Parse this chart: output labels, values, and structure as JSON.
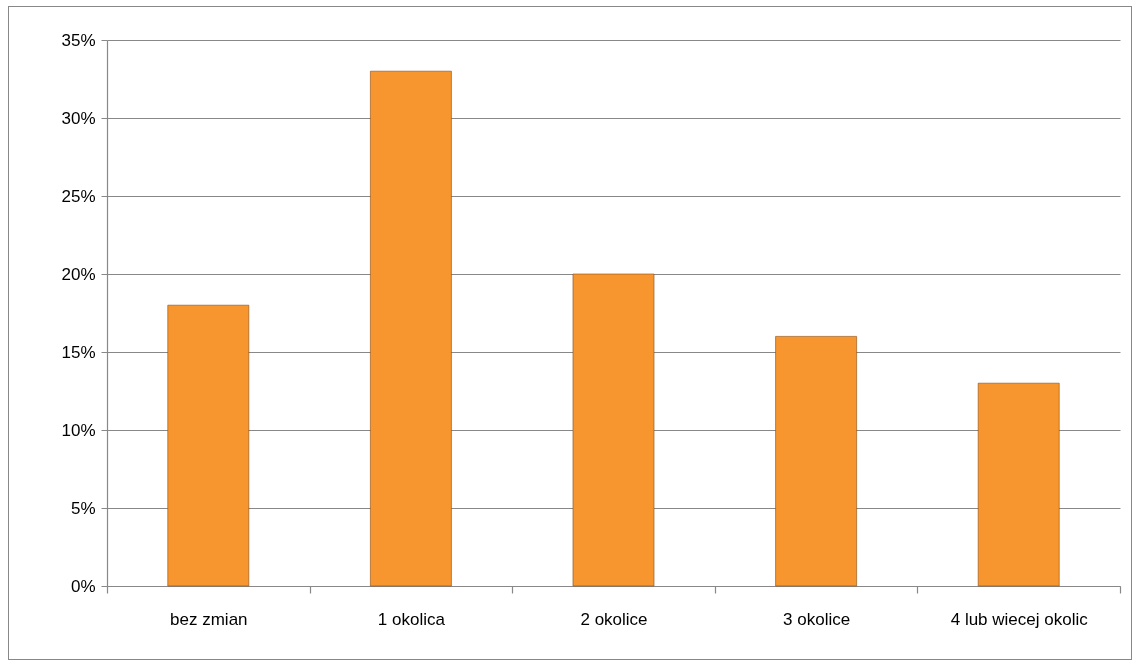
{
  "chart_data": {
    "type": "bar",
    "categories": [
      "bez zmian",
      "1 okolica",
      "2 okolice",
      "3 okolice",
      "4 lub wiecej okolic"
    ],
    "values": [
      18,
      33,
      20,
      16,
      13
    ],
    "color": "#f7962f",
    "ylim": [
      0,
      35
    ],
    "yticks": [
      {
        "value": 0,
        "label": "0%"
      },
      {
        "value": 5,
        "label": "5%"
      },
      {
        "value": 10,
        "label": "10%"
      },
      {
        "value": 15,
        "label": "15%"
      },
      {
        "value": 20,
        "label": "20%"
      },
      {
        "value": 25,
        "label": "25%"
      },
      {
        "value": 30,
        "label": "30%"
      },
      {
        "value": 35,
        "label": "35%"
      }
    ],
    "grid": "y"
  }
}
